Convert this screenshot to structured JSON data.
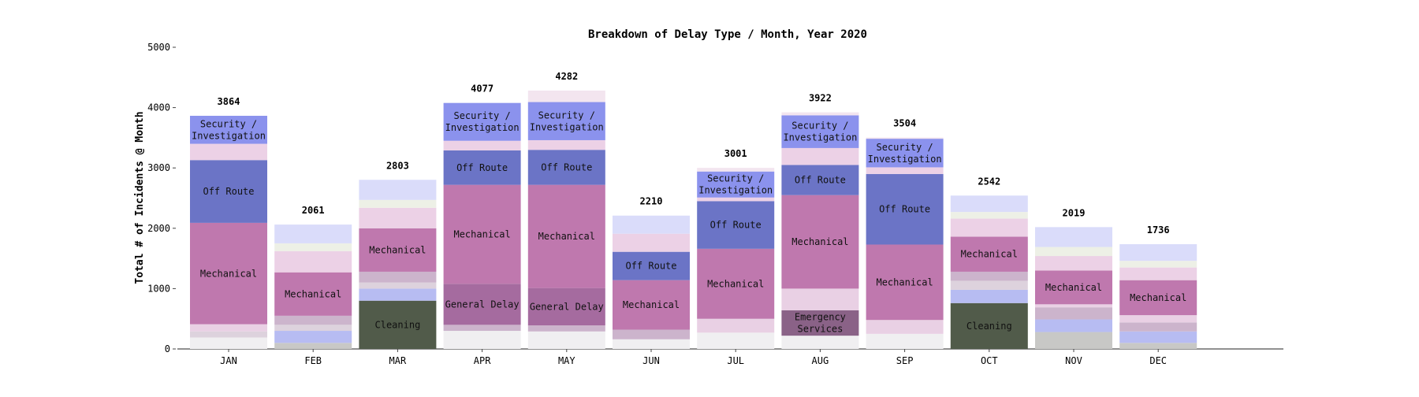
{
  "chart_data": {
    "type": "bar",
    "stacked": true,
    "title": "Breakdown of Delay Type / Month, Year 2020",
    "xlabel": "",
    "ylabel": "Total # of Incidents @ Month",
    "ylim": [
      0,
      5000
    ],
    "yticks": [
      0,
      1000,
      2000,
      3000,
      4000,
      5000
    ],
    "categories": [
      "JAN",
      "FEB",
      "MAR",
      "APR",
      "MAY",
      "JUN",
      "JUL",
      "AUG",
      "SEP",
      "OCT",
      "NOV",
      "DEC"
    ],
    "totals": [
      3864,
      2061,
      2803,
      4077,
      4282,
      2210,
      3001,
      3922,
      3504,
      2542,
      2019,
      1736
    ],
    "colors": {
      "a": "#c8c8c6",
      "b": "#f0eff1",
      "cleaning": "#515b4a",
      "blue": "#b7bcf2",
      "c": "#ddd2dd",
      "d": "#ccb4cc",
      "general_delay": "#a56b9f",
      "emergency": "#8a6287",
      "e": "#e9d0e4",
      "mechanical": "#bf78ae",
      "off_route": "#6b74c6",
      "f": "#ecd1e6",
      "g": "#edf0e6",
      "security": "#8b92ed",
      "h": "#f3e5ef",
      "top": "#dadcfa"
    },
    "series": [
      {
        "key": "a",
        "values": [
          0,
          100,
          0,
          0,
          0,
          0,
          0,
          0,
          0,
          0,
          280,
          100
        ]
      },
      {
        "key": "b",
        "values": [
          190,
          0,
          0,
          300,
          290,
          160,
          270,
          220,
          250,
          0,
          0,
          0
        ]
      },
      {
        "key": "cleaning",
        "name": "Cleaning",
        "values": [
          0,
          0,
          800,
          0,
          0,
          0,
          0,
          0,
          0,
          760,
          0,
          0
        ]
      },
      {
        "key": "blue",
        "values": [
          0,
          200,
          200,
          0,
          0,
          0,
          0,
          0,
          0,
          220,
          210,
          190
        ]
      },
      {
        "key": "c",
        "values": [
          100,
          100,
          100,
          0,
          0,
          0,
          0,
          0,
          0,
          150,
          0,
          0
        ]
      },
      {
        "key": "d",
        "values": [
          0,
          150,
          180,
          100,
          100,
          160,
          0,
          0,
          0,
          150,
          200,
          150
        ]
      },
      {
        "key": "general_delay",
        "name": "General Delay",
        "values": [
          0,
          0,
          0,
          680,
          620,
          0,
          0,
          0,
          0,
          0,
          0,
          0
        ]
      },
      {
        "key": "emergency",
        "name": "Emergency Services",
        "values": [
          0,
          0,
          0,
          0,
          0,
          0,
          0,
          420,
          0,
          0,
          0,
          0
        ]
      },
      {
        "key": "e",
        "values": [
          120,
          0,
          0,
          0,
          0,
          0,
          230,
          360,
          230,
          0,
          50,
          120
        ]
      },
      {
        "key": "mechanical",
        "name": "Mechanical",
        "values": [
          1680,
          720,
          720,
          1640,
          1710,
          820,
          1160,
          1550,
          1250,
          580,
          560,
          580
        ]
      },
      {
        "key": "off_route",
        "name": "Off Route",
        "values": [
          1040,
          0,
          0,
          570,
          580,
          470,
          790,
          500,
          1170,
          0,
          0,
          0
        ]
      },
      {
        "key": "f",
        "values": [
          270,
          350,
          340,
          160,
          160,
          300,
          60,
          280,
          110,
          300,
          240,
          210
        ]
      },
      {
        "key": "g",
        "values": [
          0,
          130,
          130,
          0,
          0,
          0,
          0,
          0,
          0,
          110,
          150,
          110
        ]
      },
      {
        "key": "security",
        "name": "Security / Investigation",
        "values": [
          464,
          0,
          0,
          627,
          632,
          0,
          431,
          542,
          474,
          0,
          0,
          0
        ]
      },
      {
        "key": "h",
        "values": [
          0,
          0,
          0,
          0,
          190,
          0,
          60,
          50,
          20,
          0,
          0,
          0
        ]
      },
      {
        "key": "top",
        "values": [
          0,
          311,
          333,
          0,
          0,
          300,
          0,
          0,
          0,
          272,
          329,
          276
        ]
      }
    ]
  }
}
